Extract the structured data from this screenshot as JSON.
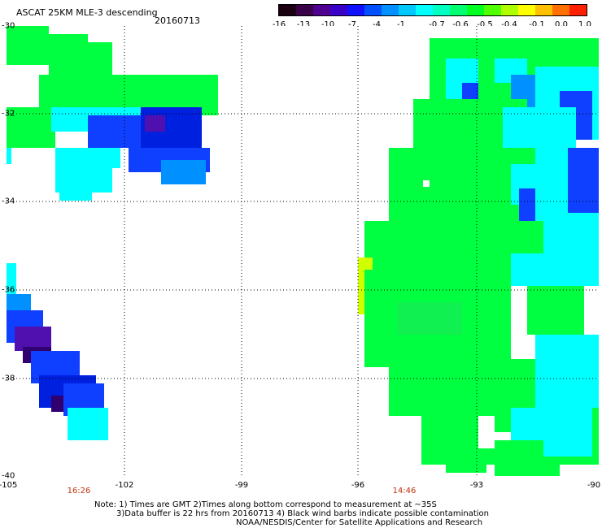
{
  "header": {
    "title": "ASCAT 25KM MLE-3 descending",
    "date": "20160713"
  },
  "colorbar": {
    "labels": [
      "-16",
      "-13",
      "-10",
      "-7",
      "-4",
      "-1",
      "-0.7",
      "-0.6",
      "-0.5",
      "-0.4",
      "-0.1",
      "0.0",
      "1.0"
    ],
    "colors": [
      "#1a0010",
      "#3a0048",
      "#500090",
      "#3a00c8",
      "#1010ff",
      "#0050ff",
      "#0090ff",
      "#00c8ff",
      "#00ffff",
      "#00ffc0",
      "#00ff70",
      "#00ff20",
      "#50ff00",
      "#b0ff00",
      "#ffff00",
      "#ffc000",
      "#ff7000",
      "#ff2000"
    ]
  },
  "axes": {
    "y_labels": [
      "-30",
      "-32",
      "-34",
      "-36",
      "-38",
      "-40"
    ],
    "x_labels": [
      "-105",
      "-102",
      "-99",
      "-96",
      "-93",
      "-90"
    ],
    "lat_range": [
      -40,
      -30
    ],
    "lon_range": [
      -105,
      -90
    ]
  },
  "times": [
    "16:26",
    "14:46"
  ],
  "notes": {
    "line1": "Note: 1) Times are GMT 2)Times along bottom correspond to measurement at ~35S",
    "line2": "3)Data buffer is 22 hrs from 20160713 4) Black wind barbs indicate possible contamination",
    "line3": "NOAA/NESDIS/Center for Satellite Applications and Research"
  }
}
